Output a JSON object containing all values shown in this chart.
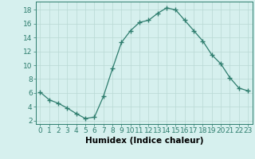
{
  "x": [
    0,
    1,
    2,
    3,
    4,
    5,
    6,
    7,
    8,
    9,
    10,
    11,
    12,
    13,
    14,
    15,
    16,
    17,
    18,
    19,
    20,
    21,
    22,
    23
  ],
  "y": [
    6.1,
    5.0,
    4.5,
    3.8,
    3.0,
    2.3,
    2.5,
    5.5,
    9.5,
    13.3,
    15.0,
    16.2,
    16.5,
    17.5,
    18.3,
    18.0,
    16.5,
    15.0,
    13.5,
    11.5,
    10.2,
    8.2,
    6.7,
    6.3
  ],
  "line_color": "#2e7d6e",
  "marker": "+",
  "marker_size": 4,
  "bg_color": "#d6f0ee",
  "grid_color": "#b8d8d4",
  "xlabel": "Humidex (Indice chaleur)",
  "xlim": [
    -0.5,
    23.5
  ],
  "ylim": [
    1.5,
    19.2
  ],
  "xticks": [
    0,
    1,
    2,
    3,
    4,
    5,
    6,
    7,
    8,
    9,
    10,
    11,
    12,
    13,
    14,
    15,
    16,
    17,
    18,
    19,
    20,
    21,
    22,
    23
  ],
  "yticks": [
    2,
    4,
    6,
    8,
    10,
    12,
    14,
    16,
    18
  ],
  "xlabel_fontsize": 7.5,
  "tick_fontsize": 6.5
}
